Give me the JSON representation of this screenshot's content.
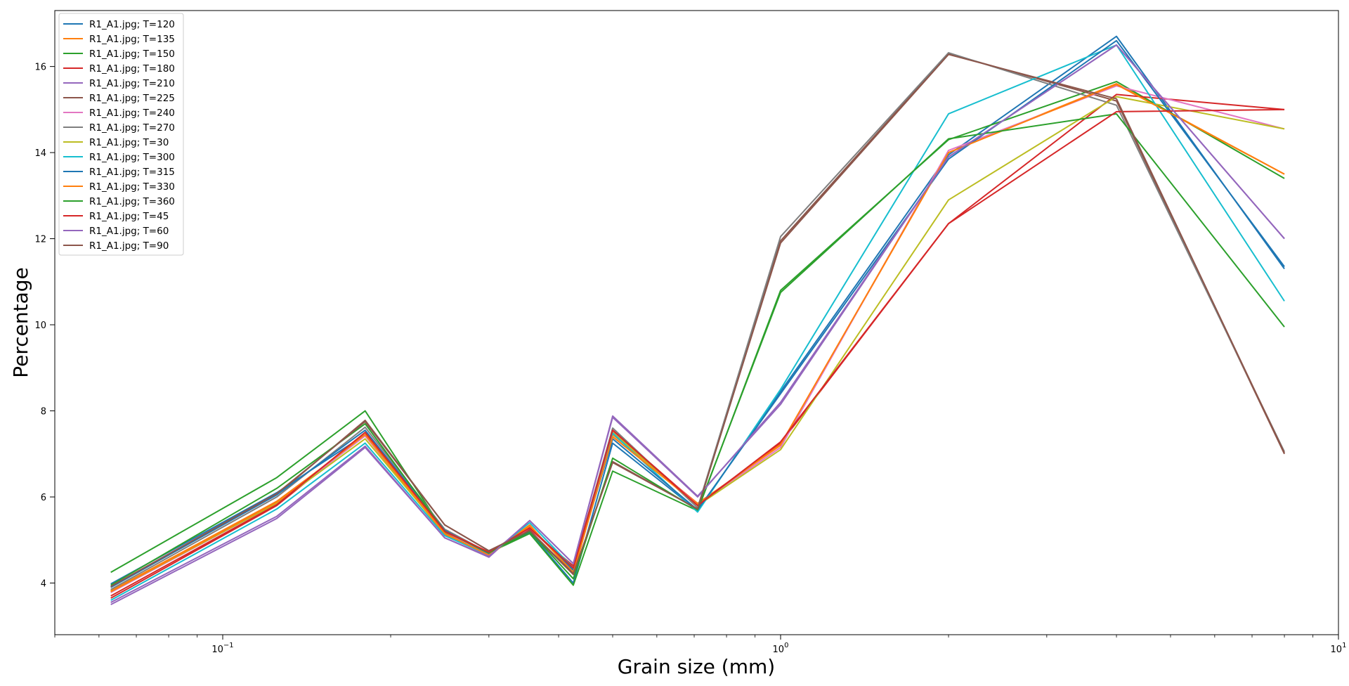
{
  "chart_data": {
    "type": "line",
    "xlabel": "Grain size (mm)",
    "ylabel": "Percentage",
    "x_scale": "log",
    "xlim": [
      0.05,
      10.0
    ],
    "ylim": [
      2.8,
      17.3
    ],
    "grid": false,
    "legend_position": "top-left",
    "x_ticks": [
      {
        "value": 0.1,
        "base": "10",
        "exp": "−1"
      },
      {
        "value": 1,
        "base": "10",
        "exp": "0"
      },
      {
        "value": 10,
        "base": "10",
        "exp": "1"
      }
    ],
    "y_ticks": [
      4,
      6,
      8,
      10,
      12,
      14,
      16
    ],
    "x": [
      0.063,
      0.125,
      0.18,
      0.25,
      0.3,
      0.355,
      0.425,
      0.5,
      0.71,
      1.0,
      2.0,
      4.0,
      8.0
    ],
    "series": [
      {
        "name": "R1_A1.jpg; T=120",
        "color": "#1f77b4",
        "values": [
          3.98,
          6.1,
          7.45,
          5.2,
          4.7,
          5.18,
          4.0,
          7.25,
          5.68,
          8.45,
          13.95,
          16.7,
          11.3
        ]
      },
      {
        "name": "R1_A1.jpg; T=135",
        "color": "#ff7f0e",
        "values": [
          3.82,
          5.9,
          7.42,
          5.12,
          4.65,
          5.35,
          4.22,
          7.45,
          5.85,
          7.2,
          14.0,
          15.6,
          13.5
        ]
      },
      {
        "name": "R1_A1.jpg; T=150",
        "color": "#2ca02c",
        "values": [
          4.25,
          6.45,
          8.0,
          5.18,
          4.7,
          5.15,
          3.95,
          6.6,
          5.68,
          10.8,
          14.3,
          15.65,
          13.4
        ]
      },
      {
        "name": "R1_A1.jpg; T=180",
        "color": "#d62728",
        "values": [
          3.65,
          5.8,
          7.45,
          5.15,
          4.7,
          5.25,
          4.4,
          7.55,
          5.82,
          7.25,
          12.35,
          15.35,
          15.0
        ]
      },
      {
        "name": "R1_A1.jpg; T=210",
        "color": "#9467bd",
        "values": [
          3.5,
          5.5,
          7.15,
          5.05,
          4.6,
          5.45,
          4.45,
          7.88,
          6.02,
          8.15,
          13.9,
          16.5,
          12.0
        ]
      },
      {
        "name": "R1_A1.jpg; T=225",
        "color": "#8c564b",
        "values": [
          3.9,
          6.05,
          7.78,
          5.35,
          4.75,
          5.2,
          4.2,
          6.82,
          5.72,
          11.95,
          16.3,
          15.2,
          7.0
        ]
      },
      {
        "name": "R1_A1.jpg; T=240",
        "color": "#e377c2",
        "values": [
          3.78,
          5.85,
          7.42,
          5.2,
          4.65,
          5.28,
          4.3,
          7.5,
          5.82,
          7.15,
          14.05,
          15.55,
          14.55
        ]
      },
      {
        "name": "R1_A1.jpg; T=270",
        "color": "#7f7f7f",
        "values": [
          3.85,
          6.0,
          7.62,
          5.25,
          4.7,
          5.3,
          4.35,
          7.6,
          5.75,
          12.05,
          16.32,
          15.1,
          7.05
        ]
      },
      {
        "name": "R1_A1.jpg; T=30",
        "color": "#bcbd22",
        "values": [
          3.8,
          5.85,
          7.35,
          5.15,
          4.65,
          5.3,
          4.3,
          7.5,
          5.8,
          7.1,
          12.9,
          15.3,
          14.55
        ]
      },
      {
        "name": "R1_A1.jpg; T=300",
        "color": "#17becf",
        "values": [
          3.6,
          5.72,
          7.25,
          5.1,
          4.65,
          5.4,
          4.35,
          7.48,
          5.65,
          8.5,
          14.9,
          16.5,
          10.55
        ]
      },
      {
        "name": "R1_A1.jpg; T=315",
        "color": "#1f77b4",
        "values": [
          3.9,
          6.05,
          7.55,
          5.22,
          4.68,
          5.3,
          4.3,
          7.35,
          5.7,
          8.4,
          13.85,
          16.6,
          11.35
        ]
      },
      {
        "name": "R1_A1.jpg; T=330",
        "color": "#ff7f0e",
        "values": [
          3.8,
          5.88,
          7.45,
          5.15,
          4.65,
          5.32,
          4.25,
          7.4,
          5.82,
          7.22,
          14.0,
          15.58,
          13.5
        ]
      },
      {
        "name": "R1_A1.jpg; T=360",
        "color": "#2ca02c",
        "values": [
          3.95,
          6.2,
          7.7,
          5.2,
          4.7,
          5.2,
          4.1,
          6.9,
          5.7,
          10.75,
          14.32,
          14.9,
          9.95
        ]
      },
      {
        "name": "R1_A1.jpg; T=45",
        "color": "#d62728",
        "values": [
          3.7,
          5.82,
          7.5,
          5.2,
          4.72,
          5.28,
          4.35,
          7.55,
          5.8,
          7.28,
          12.35,
          14.95,
          15.0
        ]
      },
      {
        "name": "R1_A1.jpg; T=60",
        "color": "#9467bd",
        "values": [
          3.55,
          5.55,
          7.18,
          5.05,
          4.62,
          5.45,
          4.45,
          7.85,
          6.0,
          8.2,
          13.9,
          16.5,
          12.0
        ]
      },
      {
        "name": "R1_A1.jpg; T=90",
        "color": "#8c564b",
        "values": [
          3.92,
          6.08,
          7.75,
          5.35,
          4.75,
          5.22,
          4.22,
          6.8,
          5.72,
          11.9,
          16.28,
          15.25,
          7.02
        ]
      }
    ]
  }
}
